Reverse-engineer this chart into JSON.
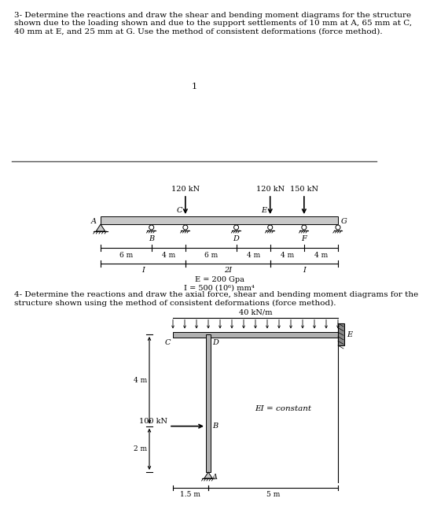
{
  "problem3_text": "3- Determine the reactions and draw the shear and bending moment diagrams for the structure\nshown due to the loading shown and due to the support settlements of 10 mm at A, 65 mm at C,\n40 mm at E, and 25 mm at G. Use the method of consistent deformations (force method).",
  "problem4_text": "4- Determine the reactions and draw the axial force, shear and bending moment diagrams for the\nstructure shown using the method of consistent deformations (force method).",
  "page_number": "1",
  "beam1": {
    "E_label": "E = 200 Gpa",
    "I_label": "I = 500 (10⁶) mm⁴"
  },
  "beam2": {
    "dist_load": "40 kN/m",
    "point_load": "100 kN",
    "EI_label": "EI = constant"
  },
  "line_color": "#000000"
}
